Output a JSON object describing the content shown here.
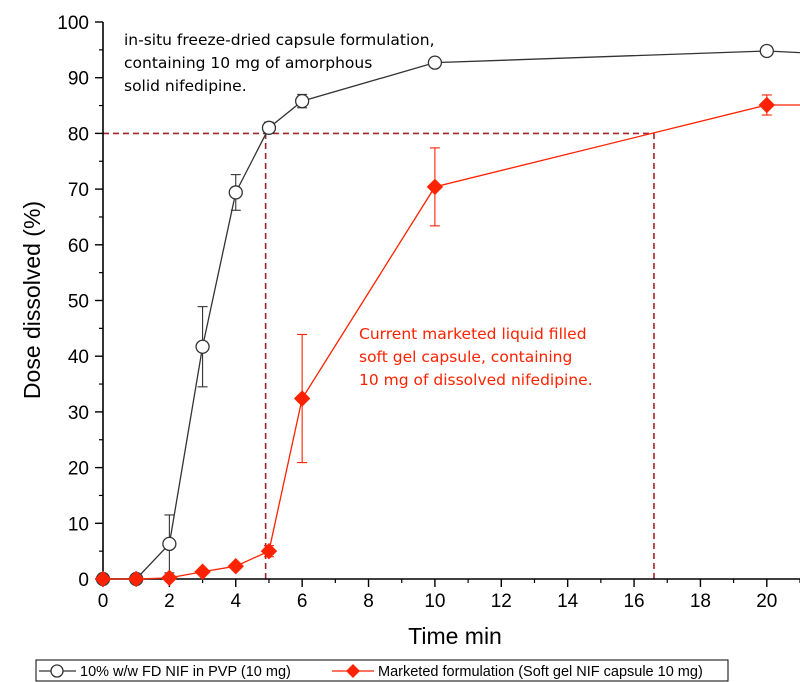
{
  "chart_data": {
    "type": "line",
    "xlabel": "Time min",
    "ylabel": "Dose dissolved (%)",
    "xlim": [
      0,
      21
    ],
    "ylim": [
      0,
      100
    ],
    "xticks": [
      0,
      2,
      4,
      6,
      8,
      10,
      12,
      14,
      16,
      18,
      20
    ],
    "yticks": [
      0,
      10,
      20,
      30,
      40,
      50,
      60,
      70,
      80,
      90,
      100
    ],
    "grid": false,
    "legend_position": "bottom",
    "series": [
      {
        "name": "10% w/w FD NIF in PVP (10 mg)",
        "color": "#333333",
        "marker": "circle-open",
        "x": [
          0,
          1,
          2,
          3,
          4,
          5,
          6,
          10,
          20,
          21
        ],
        "y": [
          0,
          0,
          6.3,
          41.7,
          69.4,
          81.0,
          85.8,
          92.7,
          94.8,
          94.5
        ],
        "err": [
          0,
          0,
          5.2,
          7.2,
          3.2,
          1.0,
          1.2,
          0.8,
          0.8,
          0
        ]
      },
      {
        "name": "Marketed formulation (Soft gel NIF capsule 10 mg)",
        "color": "#ff2200",
        "marker": "diamond-filled",
        "x": [
          0,
          1,
          2,
          3,
          4,
          5,
          6,
          10,
          20,
          21
        ],
        "y": [
          0,
          0,
          0.2,
          1.3,
          2.3,
          5.0,
          32.4,
          70.4,
          85.1,
          85.1
        ],
        "err": [
          0,
          0,
          0,
          0,
          0,
          1.0,
          11.5,
          7.0,
          1.8,
          0
        ]
      }
    ],
    "reference_lines": [
      {
        "type": "horizontal",
        "y": 80,
        "x_from": 0,
        "x_to": 16.6
      },
      {
        "type": "vertical",
        "x": 4.9,
        "y_from": 0,
        "y_to": 80
      },
      {
        "type": "vertical",
        "x": 16.6,
        "y_from": 0,
        "y_to": 80
      }
    ],
    "annotations": [
      {
        "lines": [
          "in-situ freeze-dried capsule formulation,",
          "containing 10 mg of amorphous",
          "solid nifedipine."
        ],
        "color": "#000000"
      },
      {
        "lines": [
          "Current marketed liquid filled",
          "soft gel capsule, containing",
          "10 mg of dissolved nifedipine."
        ],
        "color": "#ff2200"
      }
    ],
    "reference_line_color": "#a0262a"
  }
}
